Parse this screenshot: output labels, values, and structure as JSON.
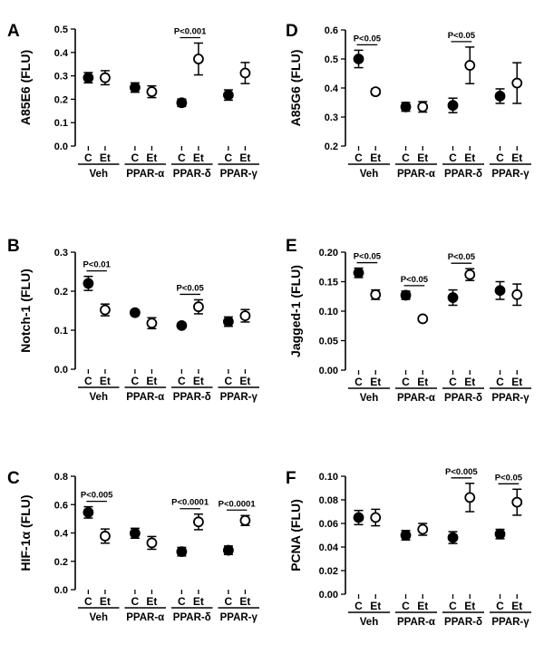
{
  "chart_data": [
    {
      "panel": "A",
      "type": "scatter",
      "ylabel": "A85E6 (FLU)",
      "ylim": [
        0,
        0.5
      ],
      "yticks": [
        "0.0",
        "0.1",
        "0.2",
        "0.3",
        "0.4",
        "0.5"
      ],
      "groups": [
        "Veh",
        "PPAR-α",
        "PPAR-δ",
        "PPAR-γ"
      ],
      "conditions": [
        "C",
        "Et"
      ],
      "series": [
        {
          "name": "C",
          "values": [
            0.292,
            0.25,
            0.185,
            0.218
          ],
          "errors": [
            0.022,
            0.02,
            0.016,
            0.022
          ]
        },
        {
          "name": "Et",
          "values": [
            0.292,
            0.232,
            0.372,
            0.312
          ],
          "errors": [
            0.03,
            0.025,
            0.068,
            0.045
          ]
        }
      ],
      "significance": [
        {
          "group": 2,
          "label": "P<0.001"
        }
      ]
    },
    {
      "panel": "B",
      "type": "scatter",
      "ylabel": "Notch-1 (FLU)",
      "ylim": [
        0,
        0.3
      ],
      "yticks": [
        "0.0",
        "0.1",
        "0.2",
        "0.3"
      ],
      "groups": [
        "Veh",
        "PPAR-α",
        "PPAR-δ",
        "PPAR-γ"
      ],
      "conditions": [
        "C",
        "Et"
      ],
      "series": [
        {
          "name": "C",
          "values": [
            0.22,
            0.145,
            0.112,
            0.122
          ],
          "errors": [
            0.018,
            0.007,
            0.005,
            0.012
          ]
        },
        {
          "name": "Et",
          "values": [
            0.152,
            0.118,
            0.16,
            0.137
          ],
          "errors": [
            0.015,
            0.014,
            0.018,
            0.016
          ]
        }
      ],
      "significance": [
        {
          "group": 0,
          "label": "P<0.01"
        },
        {
          "group": 2,
          "label": "P<0.05"
        }
      ]
    },
    {
      "panel": "C",
      "type": "scatter",
      "ylabel": "HIF-1α (FLU)",
      "ylim": [
        0,
        0.8
      ],
      "yticks": [
        "0.0",
        "0.2",
        "0.4",
        "0.6",
        "0.8"
      ],
      "groups": [
        "Veh",
        "PPAR-α",
        "PPAR-δ",
        "PPAR-γ"
      ],
      "conditions": [
        "C",
        "Et"
      ],
      "series": [
        {
          "name": "C",
          "values": [
            0.545,
            0.398,
            0.268,
            0.278
          ],
          "errors": [
            0.04,
            0.035,
            0.03,
            0.03
          ]
        },
        {
          "name": "Et",
          "values": [
            0.378,
            0.33,
            0.478,
            0.488
          ],
          "errors": [
            0.05,
            0.045,
            0.055,
            0.035
          ]
        }
      ],
      "significance": [
        {
          "group": 0,
          "label": "P<0.005"
        },
        {
          "group": 2,
          "label": "P<0.0001"
        },
        {
          "group": 3,
          "label": "P<0.0001"
        }
      ]
    },
    {
      "panel": "D",
      "type": "scatter",
      "ylabel": "A85G6 (FLU)",
      "ylim": [
        0.2,
        0.6
      ],
      "yticks": [
        "0.2",
        "0.3",
        "0.4",
        "0.5",
        "0.6"
      ],
      "groups": [
        "Veh",
        "PPAR-α",
        "PPAR-δ",
        "PPAR-γ"
      ],
      "conditions": [
        "C",
        "Et"
      ],
      "series": [
        {
          "name": "C",
          "values": [
            0.5,
            0.335,
            0.34,
            0.372
          ],
          "errors": [
            0.03,
            0.015,
            0.025,
            0.025
          ]
        },
        {
          "name": "Et",
          "values": [
            0.387,
            0.335,
            0.478,
            0.417
          ],
          "errors": [
            0.01,
            0.018,
            0.063,
            0.07
          ]
        }
      ],
      "significance": [
        {
          "group": 0,
          "label": "P<0.05"
        },
        {
          "group": 2,
          "label": "P<0.05"
        }
      ]
    },
    {
      "panel": "E",
      "type": "scatter",
      "ylabel": "Jagged-1 (FLU)",
      "ylim": [
        0,
        0.2
      ],
      "yticks": [
        "0.00",
        "0.05",
        "0.10",
        "0.15",
        "0.20"
      ],
      "groups": [
        "Veh",
        "PPAR-α",
        "PPAR-δ",
        "PPAR-γ"
      ],
      "conditions": [
        "C",
        "Et"
      ],
      "series": [
        {
          "name": "C",
          "values": [
            0.165,
            0.127,
            0.123,
            0.135
          ],
          "errors": [
            0.008,
            0.007,
            0.013,
            0.015
          ]
        },
        {
          "name": "Et",
          "values": [
            0.128,
            0.087,
            0.162,
            0.128
          ],
          "errors": [
            0.008,
            0.003,
            0.01,
            0.018
          ]
        }
      ],
      "significance": [
        {
          "group": 0,
          "label": "P<0.05"
        },
        {
          "group": 1,
          "label": "P<0.05"
        },
        {
          "group": 2,
          "label": "P<0.05"
        }
      ]
    },
    {
      "panel": "F",
      "type": "scatter",
      "ylabel": "PCNA (FLU)",
      "ylim": [
        0,
        0.1
      ],
      "yticks": [
        "0.00",
        "0.02",
        "0.04",
        "0.06",
        "0.08",
        "0.10"
      ],
      "groups": [
        "Veh",
        "PPAR-α",
        "PPAR-δ",
        "PPAR-γ"
      ],
      "conditions": [
        "C",
        "Et"
      ],
      "series": [
        {
          "name": "C",
          "values": [
            0.065,
            0.05,
            0.048,
            0.051
          ],
          "errors": [
            0.006,
            0.004,
            0.005,
            0.004
          ]
        },
        {
          "name": "Et",
          "values": [
            0.065,
            0.055,
            0.082,
            0.078
          ],
          "errors": [
            0.007,
            0.005,
            0.012,
            0.011
          ]
        }
      ],
      "significance": [
        {
          "group": 2,
          "label": "P<0.005"
        },
        {
          "group": 3,
          "label": "P<0.05"
        }
      ]
    }
  ]
}
